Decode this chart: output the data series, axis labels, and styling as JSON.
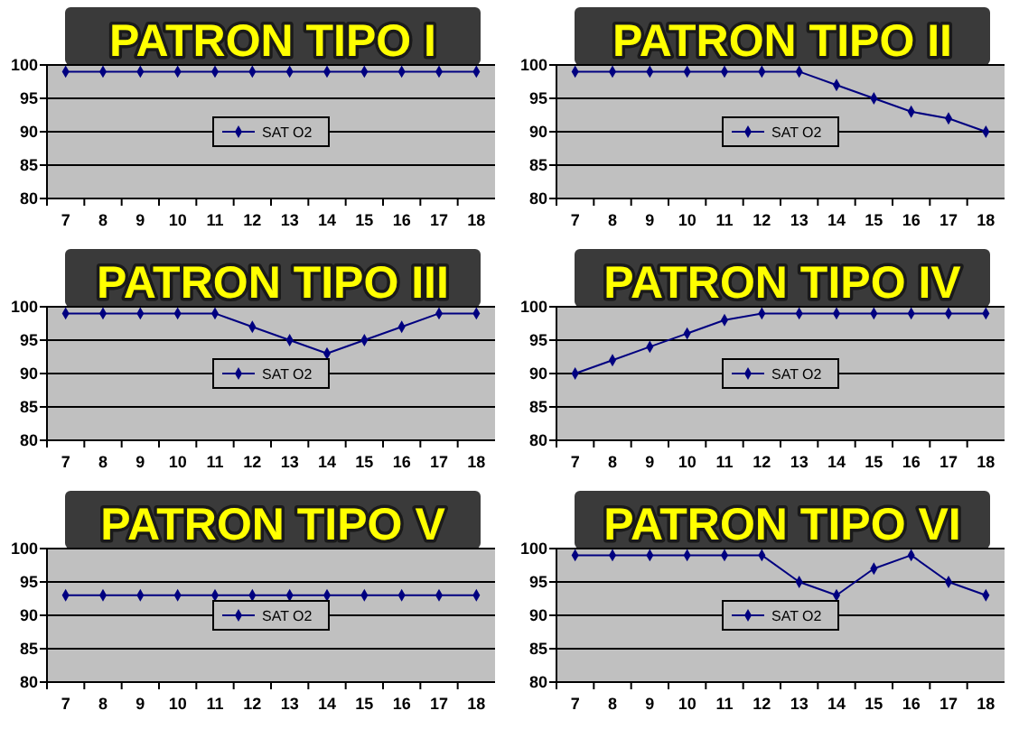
{
  "chart_data": [
    {
      "type": "line",
      "title": "PATRON TIPO I",
      "categories": [
        "7",
        "8",
        "9",
        "10",
        "11",
        "12",
        "13",
        "14",
        "15",
        "16",
        "17",
        "18"
      ],
      "series": [
        {
          "name": "SAT O2",
          "color": "#000080",
          "values": [
            99,
            99,
            99,
            99,
            99,
            99,
            99,
            99,
            99,
            99,
            99,
            99
          ]
        }
      ],
      "ylim": [
        80,
        100
      ],
      "yticks": [
        80,
        85,
        90,
        95,
        100
      ],
      "grid": "y",
      "legend": "center",
      "marker": "diamond"
    },
    {
      "type": "line",
      "title": "PATRON TIPO II",
      "categories": [
        "7",
        "8",
        "9",
        "10",
        "11",
        "12",
        "13",
        "14",
        "15",
        "16",
        "17",
        "18"
      ],
      "series": [
        {
          "name": "SAT O2",
          "color": "#000080",
          "values": [
            99,
            99,
            99,
            99,
            99,
            99,
            99,
            97,
            95,
            93,
            92,
            90
          ]
        }
      ],
      "ylim": [
        80,
        100
      ],
      "yticks": [
        80,
        85,
        90,
        95,
        100
      ],
      "grid": "y",
      "legend": "center",
      "marker": "diamond"
    },
    {
      "type": "line",
      "title": "PATRON TIPO III",
      "categories": [
        "7",
        "8",
        "9",
        "10",
        "11",
        "12",
        "13",
        "14",
        "15",
        "16",
        "17",
        "18"
      ],
      "series": [
        {
          "name": "SAT O2",
          "color": "#000080",
          "values": [
            99,
            99,
            99,
            99,
            99,
            97,
            95,
            93,
            95,
            97,
            99,
            99
          ]
        }
      ],
      "ylim": [
        80,
        100
      ],
      "yticks": [
        80,
        85,
        90,
        95,
        100
      ],
      "grid": "y",
      "legend": "center",
      "marker": "diamond"
    },
    {
      "type": "line",
      "title": "PATRON TIPO IV",
      "categories": [
        "7",
        "8",
        "9",
        "10",
        "11",
        "12",
        "13",
        "14",
        "15",
        "16",
        "17",
        "18"
      ],
      "series": [
        {
          "name": "SAT O2",
          "color": "#000080",
          "values": [
            90,
            92,
            94,
            96,
            98,
            99,
            99,
            99,
            99,
            99,
            99,
            99
          ]
        }
      ],
      "ylim": [
        80,
        100
      ],
      "yticks": [
        80,
        85,
        90,
        95,
        100
      ],
      "grid": "y",
      "legend": "center",
      "marker": "diamond"
    },
    {
      "type": "line",
      "title": "PATRON TIPO V",
      "categories": [
        "7",
        "8",
        "9",
        "10",
        "11",
        "12",
        "13",
        "14",
        "15",
        "16",
        "17",
        "18"
      ],
      "series": [
        {
          "name": "SAT O2",
          "color": "#000080",
          "values": [
            93,
            93,
            93,
            93,
            93,
            93,
            93,
            93,
            93,
            93,
            93,
            93
          ]
        }
      ],
      "ylim": [
        80,
        100
      ],
      "yticks": [
        80,
        85,
        90,
        95,
        100
      ],
      "grid": "y",
      "legend": "center",
      "marker": "diamond"
    },
    {
      "type": "line",
      "title": "PATRON TIPO VI",
      "categories": [
        "7",
        "8",
        "9",
        "10",
        "11",
        "12",
        "13",
        "14",
        "15",
        "16",
        "17",
        "18"
      ],
      "series": [
        {
          "name": "SAT O2",
          "color": "#000080",
          "values": [
            99,
            99,
            99,
            99,
            99,
            99,
            95,
            93,
            97,
            99,
            95,
            93
          ]
        }
      ],
      "ylim": [
        80,
        100
      ],
      "yticks": [
        80,
        85,
        90,
        95,
        100
      ],
      "grid": "y",
      "legend": "center",
      "marker": "diamond"
    }
  ]
}
